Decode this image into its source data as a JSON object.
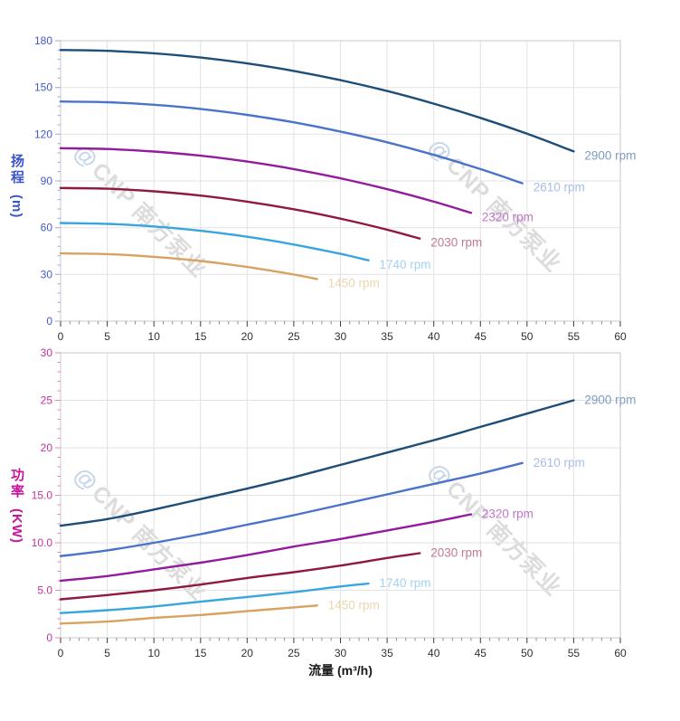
{
  "page": {
    "background": "#ffffff"
  },
  "watermark": {
    "icon": "@",
    "text": "CNP 南方泵业",
    "text_color": "#dcdcdc",
    "icon_color": "#c6d4ea"
  },
  "chart_data": [
    {
      "id": "head",
      "type": "line",
      "title": "",
      "ylabel_cn": "扬程",
      "ylabel_unit": "(m)",
      "xlabel": "",
      "x_range": [
        0,
        60
      ],
      "y_range": [
        0,
        180
      ],
      "x_major_ticks": [
        0,
        5,
        10,
        15,
        20,
        25,
        30,
        35,
        40,
        45,
        50,
        55,
        60
      ],
      "x_tick_labels": [
        "0",
        "5",
        "10",
        "15",
        "20",
        "25",
        "30",
        "35",
        "40",
        "45",
        "50",
        "55",
        "60"
      ],
      "x_minor_step": 1,
      "y_major_ticks": [
        0,
        30,
        60,
        90,
        120,
        150,
        180
      ],
      "y_tick_labels": [
        "0",
        "30",
        "60",
        "90",
        "120",
        "150",
        "180"
      ],
      "y_minor_step": 6,
      "grid": true,
      "grid_color": "#e2e2e2",
      "frame_color": "#c9c9c9",
      "x_label_color": "#303030",
      "y_label_color": "#4459c9",
      "y_tick_color": "#9aa8e4",
      "legend": "inline-end-labels",
      "series": [
        {
          "name": "2900 rpm",
          "color": "#1c4e78",
          "label_color": "#7d9ac0",
          "x": [
            0,
            5,
            10,
            15,
            20,
            25,
            30,
            35,
            40,
            45,
            50,
            55
          ],
          "y": [
            174,
            173.5,
            171.9,
            169.2,
            165.4,
            160.6,
            154.7,
            147.7,
            139.6,
            130.5,
            120.3,
            109
          ]
        },
        {
          "name": "2610 rpm",
          "color": "#4a74c9",
          "label_color": "#a9bce8",
          "x": [
            0,
            5,
            10,
            15,
            20,
            25,
            30,
            35,
            40,
            45,
            49.5
          ],
          "y": [
            141,
            140.5,
            138.9,
            136.2,
            132.4,
            127.6,
            121.7,
            114.8,
            106.7,
            97.6,
            88.5
          ]
        },
        {
          "name": "2320 rpm",
          "color": "#931b9e",
          "label_color": "#bf77c9",
          "x": [
            0,
            5,
            10,
            15,
            20,
            25,
            30,
            35,
            40,
            44
          ],
          "y": [
            111,
            110.5,
            108.9,
            106.2,
            102.4,
            97.6,
            91.7,
            84.7,
            76.7,
            69.5
          ]
        },
        {
          "name": "2030 rpm",
          "color": "#8f1a3c",
          "label_color": "#c2798e",
          "x": [
            0,
            5,
            10,
            15,
            20,
            25,
            30,
            35,
            38.5
          ],
          "y": [
            85.5,
            85,
            83.3,
            80.6,
            76.7,
            71.8,
            65.8,
            58.7,
            53
          ]
        },
        {
          "name": "1740 rpm",
          "color": "#38a6de",
          "label_color": "#a3d2f0",
          "x": [
            0,
            5,
            10,
            15,
            20,
            25,
            30,
            33
          ],
          "y": [
            63,
            62.4,
            60.8,
            58,
            54.2,
            49.2,
            43.2,
            39
          ]
        },
        {
          "name": "1450 rpm",
          "color": "#d6a360",
          "label_color": "#ecd5ae",
          "x": [
            0,
            5,
            10,
            15,
            20,
            25,
            27.5
          ],
          "y": [
            43.5,
            43,
            41.3,
            38.6,
            34.8,
            29.9,
            27
          ]
        }
      ]
    },
    {
      "id": "power",
      "type": "line",
      "title": "",
      "ylabel_cn": "功率",
      "ylabel_unit": "(KW)",
      "xlabel": "流量 (m³/h)",
      "x_range": [
        0,
        60
      ],
      "y_range": [
        0,
        30
      ],
      "x_major_ticks": [
        0,
        5,
        10,
        15,
        20,
        25,
        30,
        35,
        40,
        45,
        50,
        55,
        60
      ],
      "x_tick_labels": [
        "0",
        "5",
        "10",
        "15",
        "20",
        "25",
        "30",
        "35",
        "40",
        "45",
        "50",
        "55",
        "60"
      ],
      "x_minor_step": 1,
      "y_major_ticks": [
        0,
        5,
        10,
        15,
        20,
        25,
        30
      ],
      "y_tick_labels": [
        "0",
        "5.0",
        "10.0",
        "15.0",
        "20",
        "25",
        "30"
      ],
      "y_minor_step": 1,
      "grid": true,
      "grid_color": "#e2e2e2",
      "frame_color": "#c9c9c9",
      "x_label_color": "#303030",
      "y_label_color": "#c2329c",
      "y_tick_color": "#ec80cc",
      "legend": "inline-end-labels",
      "series": [
        {
          "name": "2900 rpm",
          "color": "#1c4e78",
          "label_color": "#7d9ac0",
          "x": [
            0,
            5,
            10,
            15,
            20,
            25,
            30,
            35,
            40,
            45,
            50,
            55
          ],
          "y": [
            11.8,
            12.5,
            13.5,
            14.6,
            15.7,
            16.9,
            18.2,
            19.5,
            20.8,
            22.2,
            23.6,
            25
          ]
        },
        {
          "name": "2610 rpm",
          "color": "#4a74c9",
          "label_color": "#a9bce8",
          "x": [
            0,
            5,
            10,
            15,
            20,
            25,
            30,
            35,
            40,
            45,
            49.5
          ],
          "y": [
            8.6,
            9.2,
            10,
            10.9,
            11.9,
            12.9,
            14,
            15.1,
            16.2,
            17.3,
            18.4
          ]
        },
        {
          "name": "2320 rpm",
          "color": "#931b9e",
          "label_color": "#bf77c9",
          "x": [
            0,
            5,
            10,
            15,
            20,
            25,
            30,
            35,
            40,
            44
          ],
          "y": [
            6,
            6.5,
            7.2,
            7.9,
            8.7,
            9.6,
            10.4,
            11.3,
            12.2,
            13
          ]
        },
        {
          "name": "2030 rpm",
          "color": "#8f1a3c",
          "label_color": "#c2798e",
          "x": [
            0,
            5,
            10,
            15,
            20,
            25,
            30,
            35,
            38.5
          ],
          "y": [
            4.05,
            4.5,
            5,
            5.6,
            6.3,
            6.9,
            7.6,
            8.4,
            8.9
          ]
        },
        {
          "name": "1740 rpm",
          "color": "#38a6de",
          "label_color": "#a3d2f0",
          "x": [
            0,
            5,
            10,
            15,
            20,
            25,
            30,
            33
          ],
          "y": [
            2.6,
            2.9,
            3.3,
            3.8,
            4.3,
            4.8,
            5.4,
            5.7
          ]
        },
        {
          "name": "1450 rpm",
          "color": "#d6a360",
          "label_color": "#ecd5ae",
          "x": [
            0,
            5,
            10,
            15,
            20,
            25,
            27.5
          ],
          "y": [
            1.5,
            1.7,
            2.1,
            2.4,
            2.8,
            3.2,
            3.4
          ]
        }
      ]
    }
  ]
}
